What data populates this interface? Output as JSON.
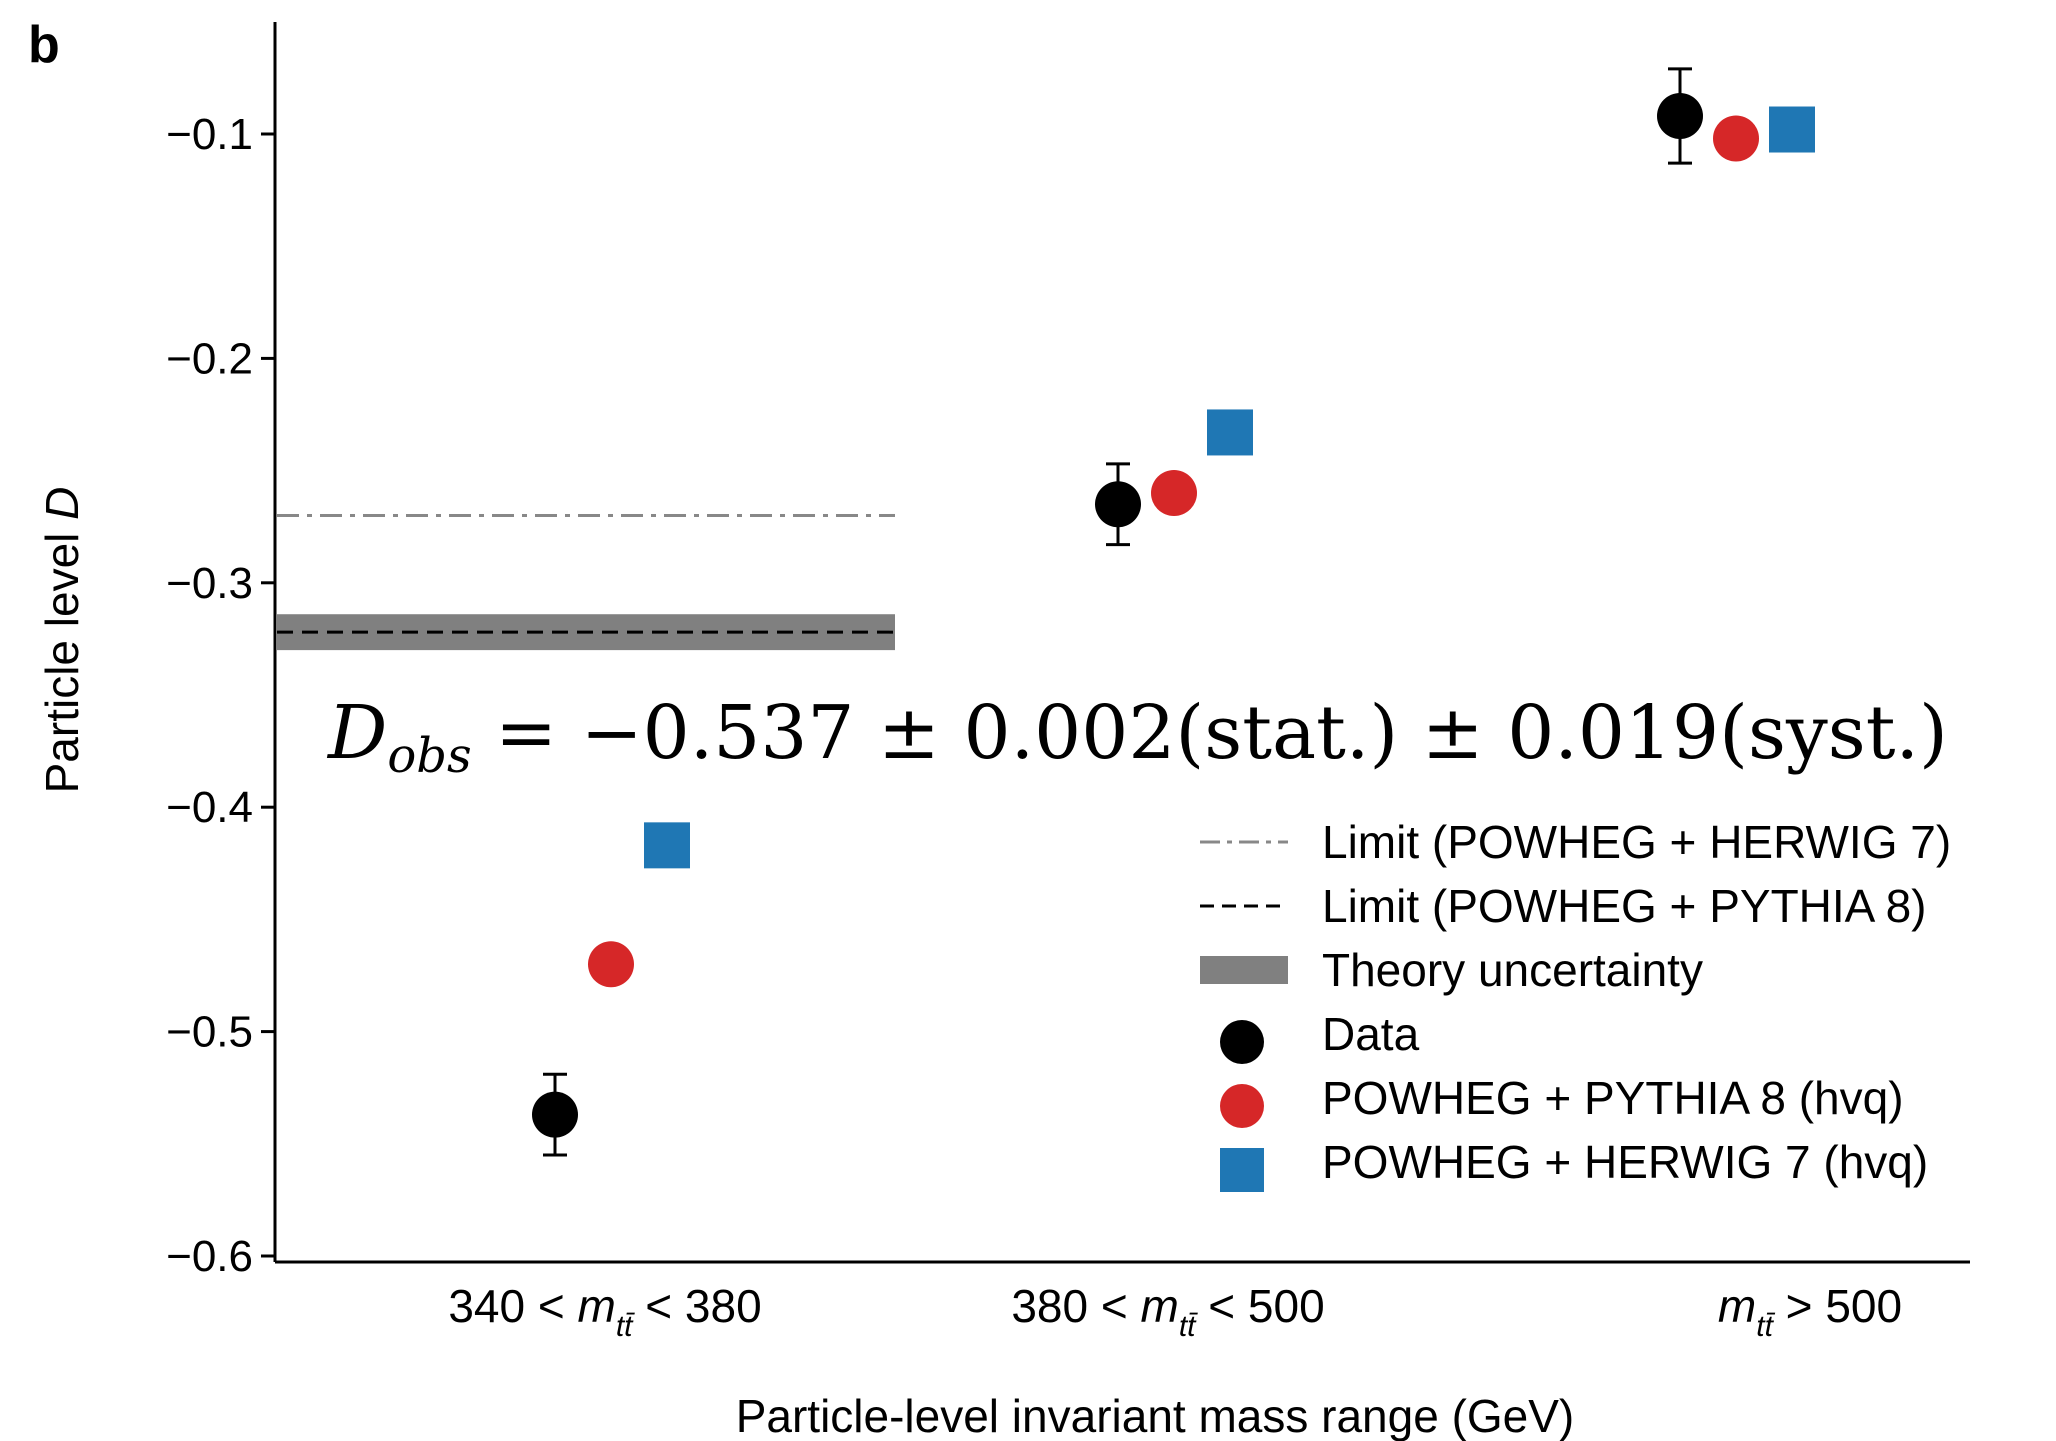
{
  "chart_data": {
    "type": "scatter",
    "panel_label": "b",
    "xlabel": "Particle-level invariant mass range (GeV)",
    "ylabel_main": "Particle level ",
    "ylabel_var": "D",
    "ylim": [
      -0.6,
      -0.05
    ],
    "yticks": [
      -0.1,
      -0.2,
      -0.3,
      -0.4,
      -0.5,
      -0.6
    ],
    "ytick_labels": [
      "−0.1",
      "−0.2",
      "−0.3",
      "−0.4",
      "−0.5",
      "−0.6"
    ],
    "categories": [
      {
        "pre": "340 < ",
        "m": "m",
        "sub": "tt̄",
        "post": " < 380"
      },
      {
        "pre": "380 < ",
        "m": "m",
        "sub": "tt̄",
        "post": " < 500"
      },
      {
        "pre": "",
        "m": "m",
        "sub": "tt̄",
        "post": " > 500"
      }
    ],
    "series": [
      {
        "name": "Data",
        "marker": "circle",
        "color": "#000000",
        "values": [
          -0.537,
          -0.265,
          -0.092
        ],
        "errors": [
          0.018,
          0.018,
          0.021
        ]
      },
      {
        "name": "POWHEG + PYTHIA 8 (hvq)",
        "marker": "circle",
        "color": "#d62728",
        "values": [
          -0.47,
          -0.26,
          -0.102
        ]
      },
      {
        "name": "POWHEG + HERWIG 7 (hvq)",
        "marker": "square",
        "color": "#1f77b4",
        "values": [
          -0.417,
          -0.233,
          -0.098
        ]
      }
    ],
    "limits": [
      {
        "name": "Limit (POWHEG + HERWIG 7)",
        "style": "dashdot",
        "color": "#888888",
        "value": -0.27
      },
      {
        "name": "Limit (POWHEG + PYTHIA 8)",
        "style": "dashed",
        "color": "#000000",
        "value": -0.322
      }
    ],
    "band": {
      "name": "Theory uncertainty",
      "color": "#808080",
      "range": [
        -0.33,
        -0.314
      ]
    },
    "annotation": {
      "D": "D",
      "sub": "obs",
      "rest": " = −0.537 ± 0.002(stat.) ± 0.019(syst.)"
    },
    "legend_position": "lower-right"
  }
}
